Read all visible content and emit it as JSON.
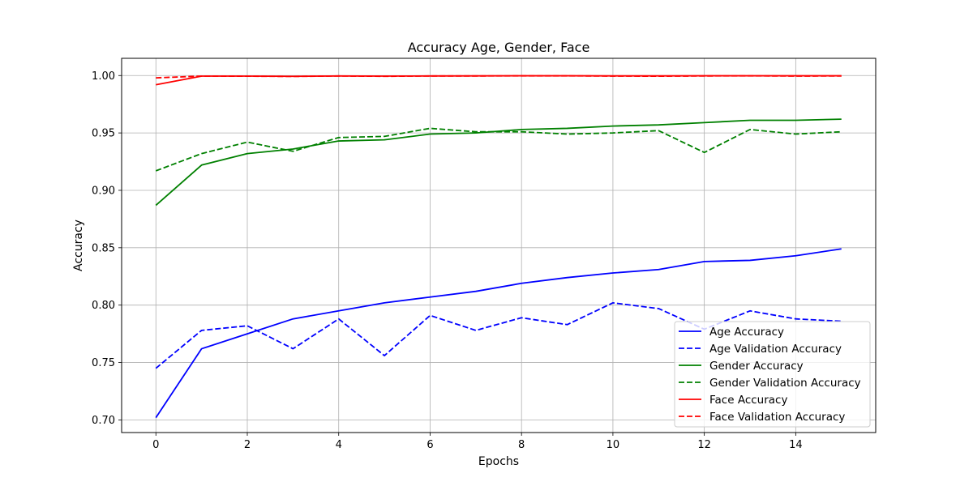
{
  "chart_data": {
    "type": "line",
    "title": "Accuracy Age, Gender, Face",
    "xlabel": "Epochs",
    "ylabel": "Accuracy",
    "xlim": [
      -0.75,
      15.75
    ],
    "ylim": [
      0.689,
      1.015
    ],
    "xticks": [
      0,
      2,
      4,
      6,
      8,
      10,
      12,
      14
    ],
    "yticks": [
      0.7,
      0.75,
      0.8,
      0.85,
      0.9,
      0.95,
      1.0
    ],
    "ytick_labels": [
      "0.70",
      "0.75",
      "0.80",
      "0.85",
      "0.90",
      "0.95",
      "1.00"
    ],
    "grid": true,
    "legend_position": "lower-right",
    "x": [
      0,
      1,
      2,
      3,
      4,
      5,
      6,
      7,
      8,
      9,
      10,
      11,
      12,
      13,
      14,
      15
    ],
    "series": [
      {
        "name": "Age Accuracy",
        "color": "#0000ff",
        "style": "solid",
        "values": [
          0.702,
          0.762,
          0.775,
          0.788,
          0.795,
          0.802,
          0.807,
          0.812,
          0.819,
          0.824,
          0.828,
          0.831,
          0.838,
          0.839,
          0.843,
          0.849
        ]
      },
      {
        "name": "Age Validation Accuracy",
        "color": "#0000ff",
        "style": "dashed",
        "values": [
          0.745,
          0.778,
          0.782,
          0.762,
          0.788,
          0.756,
          0.791,
          0.778,
          0.789,
          0.783,
          0.802,
          0.797,
          0.779,
          0.795,
          0.788,
          0.786
        ]
      },
      {
        "name": "Gender Accuracy",
        "color": "#008000",
        "style": "solid",
        "values": [
          0.887,
          0.922,
          0.932,
          0.936,
          0.943,
          0.944,
          0.949,
          0.95,
          0.953,
          0.954,
          0.956,
          0.957,
          0.959,
          0.961,
          0.961,
          0.962
        ]
      },
      {
        "name": "Gender Validation Accuracy",
        "color": "#008000",
        "style": "dashed",
        "values": [
          0.917,
          0.932,
          0.942,
          0.934,
          0.946,
          0.947,
          0.954,
          0.951,
          0.951,
          0.949,
          0.95,
          0.952,
          0.933,
          0.953,
          0.949,
          0.951
        ]
      },
      {
        "name": "Face Accuracy",
        "color": "#ff0000",
        "style": "solid",
        "values": [
          0.992,
          0.9995,
          0.9995,
          0.9993,
          0.9996,
          0.9995,
          0.9996,
          0.9997,
          0.9998,
          0.9998,
          0.9997,
          0.9997,
          0.9998,
          0.9998,
          0.9998,
          0.9998
        ]
      },
      {
        "name": "Face Validation Accuracy",
        "color": "#ff0000",
        "style": "dashed",
        "values": [
          0.998,
          0.9995,
          0.9994,
          0.9992,
          0.9996,
          0.9993,
          0.9996,
          0.9996,
          0.9997,
          0.9997,
          0.9995,
          0.9994,
          0.9996,
          0.9997,
          0.9995,
          0.9996
        ]
      }
    ]
  }
}
